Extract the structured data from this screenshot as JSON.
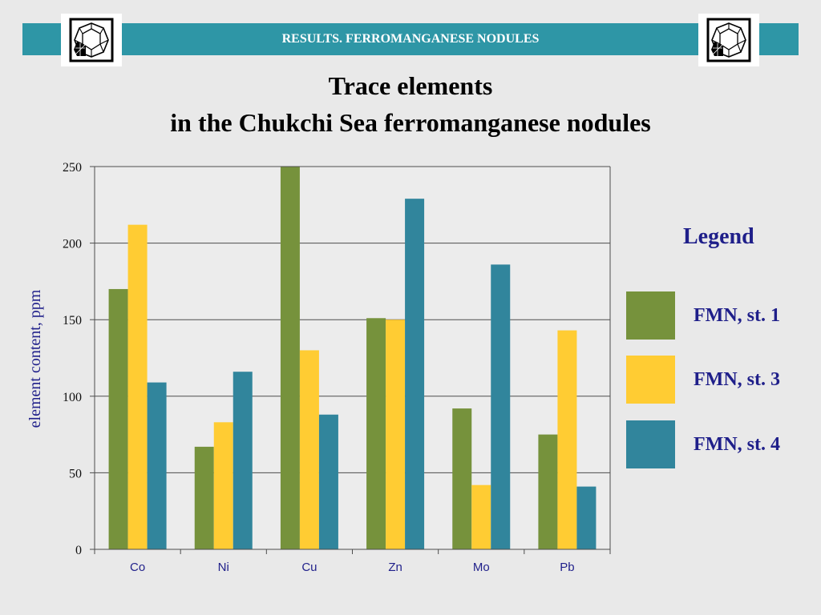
{
  "header": {
    "banner_title": "RESULTS. FERROMANGANESE NODULES",
    "logo_icon": "polyhedron-logo-icon"
  },
  "slide": {
    "title_line1": "Trace elements",
    "title_line2": "in the Chukchi Sea ferromanganese nodules"
  },
  "legend": {
    "title": "Legend",
    "items": [
      {
        "label": "FMN, st. 1",
        "color": "#76923c"
      },
      {
        "label": "FMN, st. 3",
        "color": "#ffcc33"
      },
      {
        "label": "FMN, st. 4",
        "color": "#31859c"
      }
    ]
  },
  "chart_data": {
    "type": "bar",
    "categories": [
      "Co",
      "Ni",
      "Cu",
      "Zn",
      "Mo",
      "Pb"
    ],
    "series": [
      {
        "name": "FMN, st. 1",
        "color": "#76923c",
        "values": [
          170,
          67,
          250,
          151,
          92,
          75
        ]
      },
      {
        "name": "FMN, st. 3",
        "color": "#ffcc33",
        "values": [
          212,
          83,
          130,
          150,
          42,
          143
        ]
      },
      {
        "name": "FMN, st. 4",
        "color": "#31859c",
        "values": [
          109,
          116,
          88,
          229,
          186,
          41
        ]
      }
    ],
    "ylabel": "element content, ppm",
    "xlabel": "",
    "ylim": [
      0,
      250
    ],
    "yticks": [
      0,
      50,
      100,
      150,
      200,
      250
    ],
    "grid": true,
    "legend_position": "right"
  }
}
